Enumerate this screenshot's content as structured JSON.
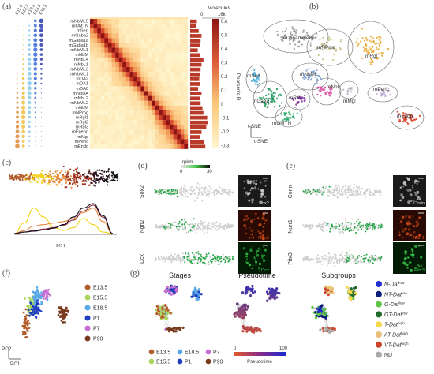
{
  "panel_labels": [
    "(a)",
    "(b)",
    "(c)",
    "(d)",
    "(e)",
    "(f)",
    "(g)"
  ],
  "colors": {
    "E13.5": "#b35c2a",
    "E15.5": "#a9d65c",
    "E18.5": "#5aa9e6",
    "P1": "#1f3fbf",
    "P7": "#c76dd1",
    "P90": "#7a3b1f",
    "heat_low": "#fff3c4",
    "heat_mid": "#f4a25a",
    "heat_high": "#a61c1c",
    "bar": "#b83a2a"
  },
  "chart_data": [
    {
      "type": "heatmap",
      "panel": "(a)",
      "stage_columns": [
        "E11.5",
        "E12.5",
        "E13.5",
        "E15.5",
        "E18.5"
      ],
      "rows": [
        "mNbML5",
        "mOMTN",
        "mSert",
        "mGaba2",
        "mGaba1a",
        "mGaba1b",
        "mNbML1",
        "mNbM",
        "mNbL4",
        "mNbL1",
        "mNbML3",
        "mNbML1",
        "mDA2",
        "mDA1",
        "mDA0",
        "mNbDA",
        "mNbL2",
        "mNbML2",
        "mNbM",
        "mNProg",
        "mRgl1",
        "mRgl2",
        "mRgl3",
        "mEpend",
        "mMgl",
        "mPeric",
        "mEndo"
      ],
      "colorbar_label": "Pearson's R",
      "colorbar_ticks": [
        "0.6",
        "0.5",
        "0.4",
        "0.3",
        "0.2",
        "0.1",
        "0",
        "-0.1",
        "-0.2",
        "-0.3"
      ],
      "bar_title": "Molecules",
      "bar_ticks": [
        "0",
        "16k"
      ]
    },
    {
      "type": "scatter",
      "panel": "(b)",
      "cluster_labels": [
        "mDopaminergic",
        "mNProg",
        "mRgl",
        "mSert",
        "mNbML",
        "mGaba",
        "mNbL",
        "mRN",
        "mMgl",
        "mPeric",
        "mOMTN",
        "mEndo"
      ],
      "axes": [
        "t-SNE",
        "t-SNE"
      ]
    },
    {
      "type": "line",
      "panel": "(c)",
      "xlabel": "PC 1",
      "series": [
        {
          "color": "#f2d21b",
          "x": [
            0,
            0.1,
            0.2,
            0.3,
            0.4,
            0.5,
            0.6,
            0.7,
            0.8,
            0.9,
            1
          ],
          "values": [
            0,
            0.35,
            0.85,
            0.55,
            0.2,
            0.1,
            0.2,
            0.5,
            0.3,
            0.05,
            0
          ]
        },
        {
          "color": "#e58a3a",
          "x": [
            0,
            0.1,
            0.2,
            0.3,
            0.4,
            0.5,
            0.6,
            0.7,
            0.8,
            0.9,
            1
          ],
          "values": [
            0,
            0.1,
            0.25,
            0.3,
            0.35,
            0.4,
            0.5,
            0.7,
            0.85,
            0.4,
            0
          ]
        },
        {
          "color": "#8a2a3a",
          "x": [
            0,
            0.1,
            0.2,
            0.3,
            0.4,
            0.5,
            0.6,
            0.7,
            0.8,
            0.9,
            1
          ],
          "values": [
            0,
            0.05,
            0.1,
            0.15,
            0.2,
            0.28,
            0.45,
            0.75,
            0.95,
            0.55,
            0
          ]
        },
        {
          "color": "#120a1a",
          "x": [
            0,
            0.1,
            0.2,
            0.3,
            0.4,
            0.5,
            0.6,
            0.7,
            0.8,
            0.9,
            1
          ],
          "values": [
            0,
            0.05,
            0.08,
            0.12,
            0.18,
            0.3,
            0.55,
            0.85,
            1.0,
            0.6,
            0
          ]
        }
      ]
    },
    {
      "type": "scatter",
      "panel": "(d)",
      "genes": [
        "Sox2",
        "Ngn2",
        "Dcx"
      ],
      "colorbar_title": "rpkm",
      "colorbar_ticks": [
        "0",
        "30"
      ]
    },
    {
      "type": "scatter",
      "panel": "(e)",
      "genes": [
        "Corin",
        "Nurr1",
        "Pitx3"
      ]
    },
    {
      "type": "scatter",
      "panel": "(f)",
      "legend": [
        "E13.5",
        "E15.5",
        "E18.5",
        "P1",
        "P7",
        "P90"
      ],
      "axes": [
        "PC1",
        "PC2"
      ]
    },
    {
      "type": "scatter",
      "panel": "(g)",
      "titles": [
        "Stages",
        "Pseudotime",
        "Subgroups"
      ],
      "stage_legend": [
        "E13.5",
        "E18.5",
        "P7",
        "E15.5",
        "P1",
        "P90"
      ],
      "pseudotime_ticks": [
        "0",
        "100"
      ],
      "pseudotime_label": "Pseudotime",
      "subgroups": [
        {
          "base": "N-Dat",
          "sup": "low",
          "color": "#1f2fd0"
        },
        {
          "base": "NT-Dat",
          "sup": "low",
          "color": "#0c1f7a"
        },
        {
          "base": "G-Dat",
          "sup": "low",
          "color": "#62c64a"
        },
        {
          "base": "GT-Dat",
          "sup": "low",
          "color": "#1c6b2a"
        },
        {
          "base": "T-Dat",
          "sup": "high",
          "color": "#f6d84c"
        },
        {
          "base": "AT-Dat",
          "sup": "high",
          "color": "#e8c07a"
        },
        {
          "base": "VT-Dat",
          "sup": "high",
          "color": "#c9452b"
        },
        {
          "base": "ND",
          "sup": "",
          "color": "#a8a8a8"
        }
      ]
    }
  ]
}
